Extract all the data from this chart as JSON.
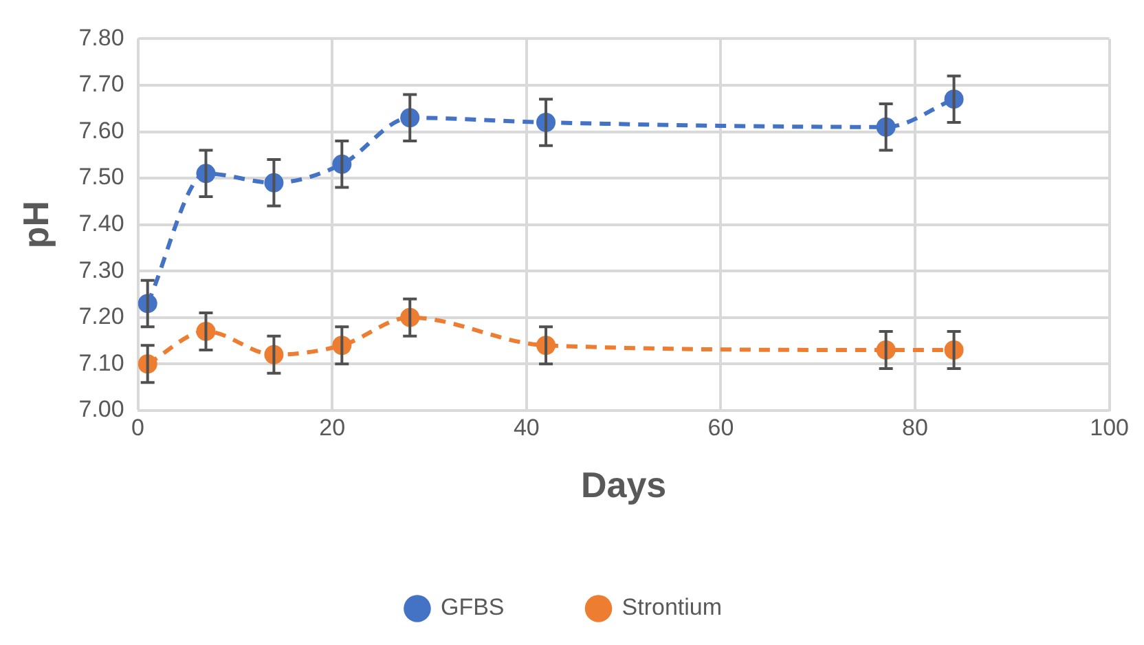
{
  "chart_data": {
    "type": "line",
    "xlabel": "Days",
    "ylabel": "pH",
    "x": [
      1,
      7,
      14,
      21,
      28,
      42,
      77,
      84
    ],
    "series": [
      {
        "name": "GFBS",
        "color": "#4472c4",
        "values": [
          7.23,
          7.51,
          7.49,
          7.53,
          7.63,
          7.62,
          7.61,
          7.67
        ],
        "errors": [
          0.05,
          0.05,
          0.05,
          0.05,
          0.05,
          0.05,
          0.05,
          0.05
        ]
      },
      {
        "name": "Strontium",
        "color": "#ed7d31",
        "values": [
          7.1,
          7.17,
          7.12,
          7.14,
          7.2,
          7.14,
          7.13,
          7.13
        ],
        "errors": [
          0.04,
          0.04,
          0.04,
          0.04,
          0.04,
          0.04,
          0.04,
          0.04
        ]
      }
    ],
    "xlim": [
      0,
      100
    ],
    "xticks": [
      0,
      20,
      40,
      60,
      80,
      100
    ],
    "ylim": [
      7.0,
      7.8
    ],
    "yticks": [
      {
        "value": 7.0,
        "label": "7.00"
      },
      {
        "value": 7.1,
        "label": "7.10"
      },
      {
        "value": 7.2,
        "label": "7.20"
      },
      {
        "value": 7.3,
        "label": "7.30"
      },
      {
        "value": 7.4,
        "label": "7.40"
      },
      {
        "value": 7.5,
        "label": "7.50"
      },
      {
        "value": 7.6,
        "label": "7.60"
      },
      {
        "value": 7.7,
        "label": "7.70"
      },
      {
        "value": 7.8,
        "label": "7.80"
      }
    ],
    "grid": true,
    "legend": "bottom",
    "marker": "circle",
    "line_style": "dashed"
  }
}
